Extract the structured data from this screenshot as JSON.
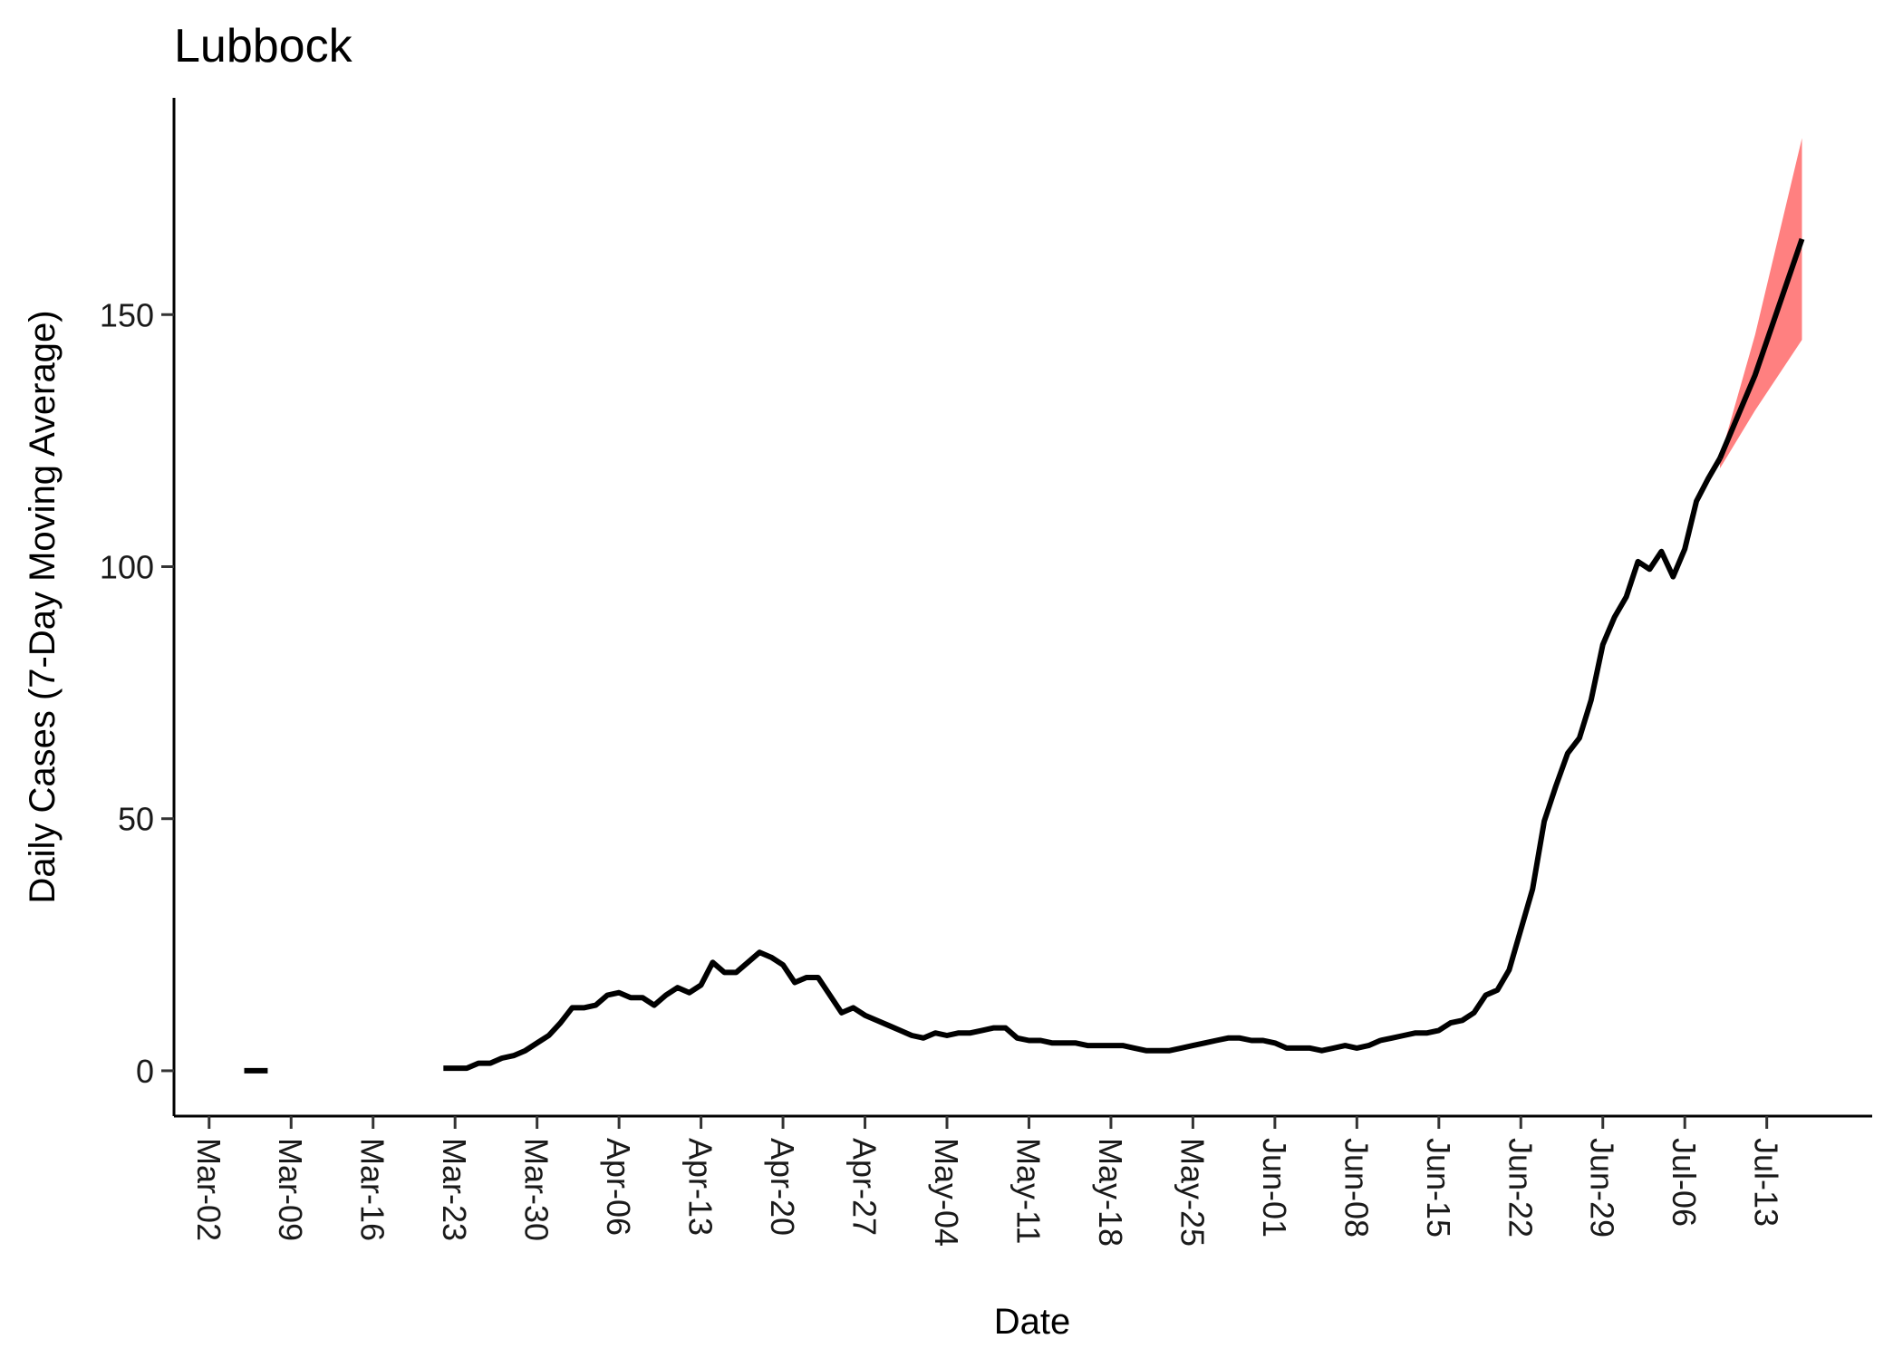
{
  "chart_data": {
    "type": "line",
    "title": "Lubbock",
    "xlabel": "Date",
    "ylabel": "Daily Cases (7-Day Moving Average)",
    "xlim": [
      "2020-02-28",
      "2020-07-22"
    ],
    "ylim": [
      -9,
      193
    ],
    "yticks": [
      0,
      50,
      100,
      150
    ],
    "xticks": [
      "2020-03-02",
      "2020-03-09",
      "2020-03-16",
      "2020-03-23",
      "2020-03-30",
      "2020-04-06",
      "2020-04-13",
      "2020-04-20",
      "2020-04-27",
      "2020-05-04",
      "2020-05-11",
      "2020-05-18",
      "2020-05-25",
      "2020-06-01",
      "2020-06-08",
      "2020-06-15",
      "2020-06-22",
      "2020-06-29",
      "2020-07-06",
      "2020-07-13"
    ],
    "xtick_labels": [
      "Mar-02",
      "Mar-09",
      "Mar-16",
      "Mar-23",
      "Mar-30",
      "Apr-06",
      "Apr-13",
      "Apr-20",
      "Apr-27",
      "May-04",
      "May-11",
      "May-18",
      "May-25",
      "Jun-01",
      "Jun-08",
      "Jun-15",
      "Jun-22",
      "Jun-29",
      "Jul-06",
      "Jul-13"
    ],
    "grid": false,
    "series": [
      {
        "role": "observed",
        "color": "#000000",
        "segments": [
          [
            [
              "2020-03-05",
              0
            ],
            [
              "2020-03-07",
              0
            ]
          ],
          [
            [
              "2020-03-22",
              0.5
            ],
            [
              "2020-03-23",
              0.5
            ],
            [
              "2020-03-24",
              0.5
            ],
            [
              "2020-03-25",
              1.5
            ],
            [
              "2020-03-26",
              1.5
            ],
            [
              "2020-03-27",
              2.5
            ],
            [
              "2020-03-28",
              3
            ],
            [
              "2020-03-29",
              4
            ],
            [
              "2020-03-30",
              5.5
            ],
            [
              "2020-03-31",
              7
            ],
            [
              "2020-04-01",
              9.5
            ],
            [
              "2020-04-02",
              12.5
            ],
            [
              "2020-04-03",
              12.5
            ],
            [
              "2020-04-04",
              13
            ],
            [
              "2020-04-05",
              15
            ],
            [
              "2020-04-06",
              15.5
            ],
            [
              "2020-04-07",
              14.5
            ],
            [
              "2020-04-08",
              14.5
            ],
            [
              "2020-04-09",
              13
            ],
            [
              "2020-04-10",
              15
            ],
            [
              "2020-04-11",
              16.5
            ],
            [
              "2020-04-12",
              15.5
            ],
            [
              "2020-04-13",
              17
            ],
            [
              "2020-04-14",
              21.5
            ],
            [
              "2020-04-15",
              19.5
            ],
            [
              "2020-04-16",
              19.5
            ],
            [
              "2020-04-17",
              21.5
            ],
            [
              "2020-04-18",
              23.5
            ],
            [
              "2020-04-19",
              22.5
            ],
            [
              "2020-04-20",
              21
            ],
            [
              "2020-04-21",
              17.5
            ],
            [
              "2020-04-22",
              18.5
            ],
            [
              "2020-04-23",
              18.5
            ],
            [
              "2020-04-24",
              15
            ],
            [
              "2020-04-25",
              11.5
            ],
            [
              "2020-04-26",
              12.5
            ],
            [
              "2020-04-27",
              11
            ],
            [
              "2020-04-28",
              10
            ],
            [
              "2020-04-29",
              9
            ],
            [
              "2020-04-30",
              8
            ],
            [
              "2020-05-01",
              7
            ],
            [
              "2020-05-02",
              6.5
            ],
            [
              "2020-05-03",
              7.5
            ],
            [
              "2020-05-04",
              7
            ],
            [
              "2020-05-05",
              7.5
            ],
            [
              "2020-05-06",
              7.5
            ],
            [
              "2020-05-07",
              8
            ],
            [
              "2020-05-08",
              8.5
            ],
            [
              "2020-05-09",
              8.5
            ],
            [
              "2020-05-10",
              6.5
            ],
            [
              "2020-05-11",
              6
            ],
            [
              "2020-05-12",
              6
            ],
            [
              "2020-05-13",
              5.5
            ],
            [
              "2020-05-14",
              5.5
            ],
            [
              "2020-05-15",
              5.5
            ],
            [
              "2020-05-16",
              5
            ],
            [
              "2020-05-17",
              5
            ],
            [
              "2020-05-18",
              5
            ],
            [
              "2020-05-19",
              5
            ],
            [
              "2020-05-20",
              4.5
            ],
            [
              "2020-05-21",
              4
            ],
            [
              "2020-05-22",
              4
            ],
            [
              "2020-05-23",
              4
            ],
            [
              "2020-05-24",
              4.5
            ],
            [
              "2020-05-25",
              5
            ],
            [
              "2020-05-26",
              5.5
            ],
            [
              "2020-05-27",
              6
            ],
            [
              "2020-05-28",
              6.5
            ],
            [
              "2020-05-29",
              6.5
            ],
            [
              "2020-05-30",
              6
            ],
            [
              "2020-05-31",
              6
            ],
            [
              "2020-06-01",
              5.5
            ],
            [
              "2020-06-02",
              4.5
            ],
            [
              "2020-06-03",
              4.5
            ],
            [
              "2020-06-04",
              4.5
            ],
            [
              "2020-06-05",
              4
            ],
            [
              "2020-06-06",
              4.5
            ],
            [
              "2020-06-07",
              5
            ],
            [
              "2020-06-08",
              4.5
            ],
            [
              "2020-06-09",
              5
            ],
            [
              "2020-06-10",
              6
            ],
            [
              "2020-06-11",
              6.5
            ],
            [
              "2020-06-12",
              7
            ],
            [
              "2020-06-13",
              7.5
            ],
            [
              "2020-06-14",
              7.5
            ],
            [
              "2020-06-15",
              8
            ],
            [
              "2020-06-16",
              9.5
            ],
            [
              "2020-06-17",
              10
            ],
            [
              "2020-06-18",
              11.5
            ],
            [
              "2020-06-19",
              15
            ],
            [
              "2020-06-20",
              16
            ],
            [
              "2020-06-21",
              20
            ],
            [
              "2020-06-22",
              28
            ],
            [
              "2020-06-23",
              36
            ],
            [
              "2020-06-24",
              49.5
            ],
            [
              "2020-06-25",
              56.5
            ],
            [
              "2020-06-26",
              63
            ],
            [
              "2020-06-27",
              66
            ],
            [
              "2020-06-28",
              73.5
            ],
            [
              "2020-06-29",
              84.5
            ],
            [
              "2020-06-30",
              90
            ],
            [
              "2020-07-01",
              94
            ],
            [
              "2020-07-02",
              101
            ],
            [
              "2020-07-03",
              99.5
            ],
            [
              "2020-07-04",
              103
            ],
            [
              "2020-07-05",
              98
            ],
            [
              "2020-07-06",
              103.5
            ],
            [
              "2020-07-07",
              113
            ],
            [
              "2020-07-08",
              117.5
            ],
            [
              "2020-07-09",
              121.5
            ]
          ]
        ]
      },
      {
        "role": "projection",
        "color": "#000000",
        "points": [
          [
            "2020-07-09",
            121.5
          ],
          [
            "2020-07-12",
            138
          ],
          [
            "2020-07-16",
            165
          ]
        ]
      }
    ],
    "band": {
      "role": "projection-interval",
      "color": "#ff8080",
      "points": [
        {
          "x": "2020-07-09",
          "low": 119.5,
          "high": 121.5
        },
        {
          "x": "2020-07-12",
          "low": 131,
          "high": 146
        },
        {
          "x": "2020-07-16",
          "low": 145,
          "high": 185
        }
      ]
    }
  }
}
